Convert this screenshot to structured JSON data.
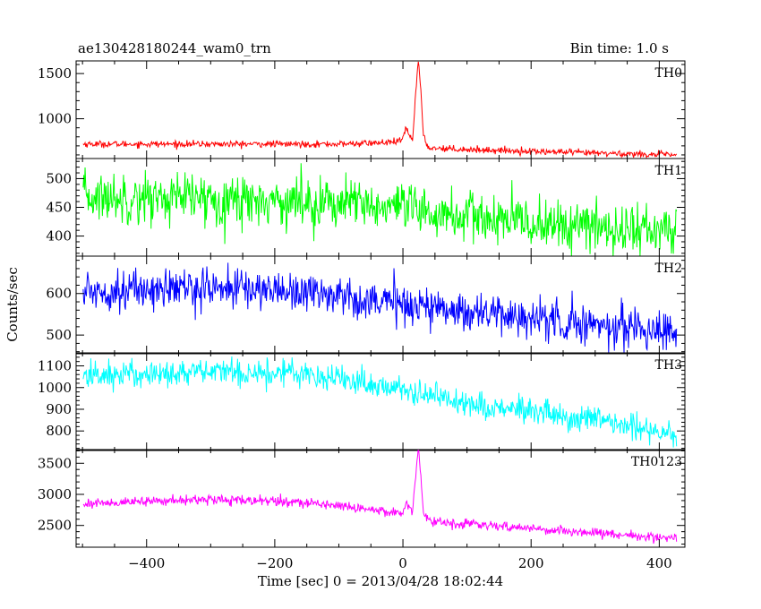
{
  "header": {
    "title": "ae130428180244_wam0_trn",
    "bin_time": "Bin time: 1.0 s"
  },
  "chart_data": {
    "type": "line",
    "xlabel": "Time [sec] 0 = 2013/04/28 18:02:44",
    "ylabel": "Counts/sec",
    "xlim": [
      -510,
      440
    ],
    "xticks": [
      -400,
      -200,
      0,
      200,
      400
    ],
    "x_range": [
      -499,
      427
    ],
    "bin_time_s": 1.0,
    "panels": [
      {
        "name": "TH0",
        "color": "#ff0000",
        "ylim": [
          560,
          1640
        ],
        "yticks": [
          1000,
          1500
        ],
        "keypoints": [
          [
            -499,
            720
          ],
          [
            -100,
            720
          ],
          [
            -10,
            740
          ],
          [
            0,
            780
          ],
          [
            5,
            900
          ],
          [
            10,
            820
          ],
          [
            15,
            760
          ],
          [
            20,
            1300
          ],
          [
            24,
            1660
          ],
          [
            28,
            1300
          ],
          [
            32,
            800
          ],
          [
            40,
            680
          ],
          [
            100,
            660
          ],
          [
            200,
            640
          ],
          [
            300,
            620
          ],
          [
            427,
            600
          ]
        ],
        "noise_sd": 18
      },
      {
        "name": "TH1",
        "color": "#00ff00",
        "ylim": [
          365,
          535
        ],
        "yticks": [
          400,
          450,
          500
        ],
        "keypoints": [
          [
            -499,
            468
          ],
          [
            -300,
            465
          ],
          [
            -100,
            458
          ],
          [
            0,
            445
          ],
          [
            100,
            433
          ],
          [
            200,
            422
          ],
          [
            300,
            415
          ],
          [
            427,
            408
          ]
        ],
        "noise_sd": 22
      },
      {
        "name": "TH2",
        "color": "#0000ff",
        "ylim": [
          455,
          690
        ],
        "yticks": [
          500,
          600
        ],
        "keypoints": [
          [
            -499,
            605
          ],
          [
            -300,
            615
          ],
          [
            -150,
            605
          ],
          [
            0,
            575
          ],
          [
            100,
            558
          ],
          [
            200,
            540
          ],
          [
            300,
            525
          ],
          [
            427,
            510
          ]
        ],
        "noise_sd": 24
      },
      {
        "name": "TH3",
        "color": "#00ffff",
        "ylim": [
          710,
          1160
        ],
        "yticks": [
          800,
          900,
          1000,
          1100
        ],
        "keypoints": [
          [
            -499,
            1055
          ],
          [
            -300,
            1072
          ],
          [
            -150,
            1068
          ],
          [
            0,
            990
          ],
          [
            100,
            930
          ],
          [
            200,
            885
          ],
          [
            300,
            845
          ],
          [
            427,
            790
          ]
        ],
        "noise_sd": 32
      },
      {
        "name": "TH0123",
        "color": "#ff00ff",
        "ylim": [
          2150,
          3720
        ],
        "yticks": [
          2500,
          3000,
          3500
        ],
        "keypoints": [
          [
            -499,
            2850
          ],
          [
            -300,
            2920
          ],
          [
            -150,
            2870
          ],
          [
            -50,
            2760
          ],
          [
            0,
            2700
          ],
          [
            5,
            2900
          ],
          [
            10,
            2780
          ],
          [
            15,
            2720
          ],
          [
            20,
            3300
          ],
          [
            24,
            3730
          ],
          [
            28,
            3300
          ],
          [
            32,
            2720
          ],
          [
            40,
            2580
          ],
          [
            100,
            2520
          ],
          [
            200,
            2450
          ],
          [
            300,
            2380
          ],
          [
            427,
            2290
          ]
        ],
        "noise_sd": 38
      }
    ]
  }
}
